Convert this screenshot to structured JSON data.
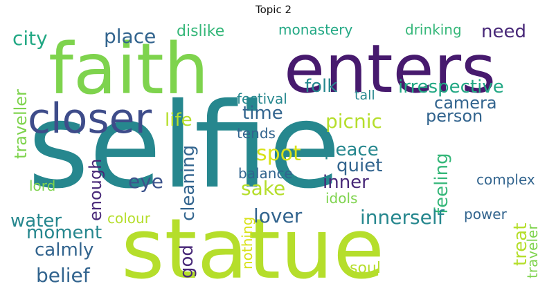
{
  "title": "Topic 2",
  "colors": {
    "green_light": "#7ed34d",
    "lime": "#b5de2b",
    "teal": "#26878e",
    "purple_dark": "#471a6e",
    "purple": "#482878",
    "slate": "#3e4c8a",
    "blue_teal": "#32648e",
    "teal_green": "#22a884",
    "green": "#35b779",
    "grey_blue": "#3b528b",
    "yellow": "#d8e219"
  },
  "words": [
    {
      "text": "selfie",
      "color": "teal"
    },
    {
      "text": "statue",
      "color": "lime"
    },
    {
      "text": "faith",
      "color": "green_light"
    },
    {
      "text": "enters",
      "color": "purple_dark"
    },
    {
      "text": "closer",
      "color": "slate"
    },
    {
      "text": "city",
      "color": "teal_green"
    },
    {
      "text": "place",
      "color": "blue_teal"
    },
    {
      "text": "dislike",
      "color": "green"
    },
    {
      "text": "monastery",
      "color": "teal_green"
    },
    {
      "text": "drinking",
      "color": "green"
    },
    {
      "text": "need",
      "color": "purple"
    },
    {
      "text": "traveller",
      "color": "green_light"
    },
    {
      "text": "festival",
      "color": "teal"
    },
    {
      "text": "tall",
      "color": "teal"
    },
    {
      "text": "folk",
      "color": "teal"
    },
    {
      "text": "irrespective",
      "color": "teal_green"
    },
    {
      "text": "camera",
      "color": "blue_teal"
    },
    {
      "text": "person",
      "color": "blue_teal"
    },
    {
      "text": "life",
      "color": "lime"
    },
    {
      "text": "time",
      "color": "blue_teal"
    },
    {
      "text": "picnic",
      "color": "lime"
    },
    {
      "text": "tends",
      "color": "blue_teal"
    },
    {
      "text": "cleaning",
      "color": "blue_teal"
    },
    {
      "text": "spot",
      "color": "yellow"
    },
    {
      "text": "peace",
      "color": "teal"
    },
    {
      "text": "quiet",
      "color": "blue_teal"
    },
    {
      "text": "feeling",
      "color": "green"
    },
    {
      "text": "enough",
      "color": "purple"
    },
    {
      "text": "eye",
      "color": "grey_blue"
    },
    {
      "text": "balance",
      "color": "blue_teal"
    },
    {
      "text": "inner",
      "color": "purple"
    },
    {
      "text": "complex",
      "color": "blue_teal"
    },
    {
      "text": "lord",
      "color": "green_light"
    },
    {
      "text": "sake",
      "color": "lime"
    },
    {
      "text": "idols",
      "color": "green_light"
    },
    {
      "text": "water",
      "color": "teal"
    },
    {
      "text": "colour",
      "color": "lime"
    },
    {
      "text": "lover",
      "color": "blue_teal"
    },
    {
      "text": "innerself",
      "color": "teal"
    },
    {
      "text": "power",
      "color": "blue_teal"
    },
    {
      "text": "moment",
      "color": "teal"
    },
    {
      "text": "nothing",
      "color": "yellow"
    },
    {
      "text": "treat",
      "color": "lime"
    },
    {
      "text": "traveler",
      "color": "green_light"
    },
    {
      "text": "calmly",
      "color": "blue_teal"
    },
    {
      "text": "god",
      "color": "purple"
    },
    {
      "text": "belief",
      "color": "blue_teal"
    },
    {
      "text": "soul",
      "color": "lime"
    }
  ]
}
